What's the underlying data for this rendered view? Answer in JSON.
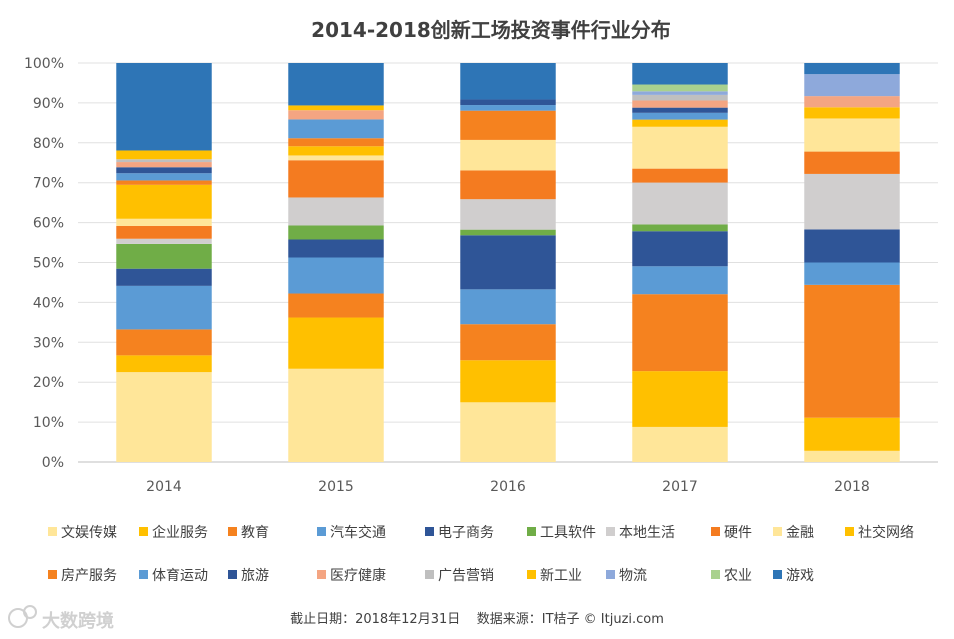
{
  "chart_data": {
    "type": "stacked-bar-100",
    "title": "2014-2018创新工场投资事件行业分布",
    "categories": [
      "2014",
      "2015",
      "2016",
      "2017",
      "2018"
    ],
    "ylim": [
      0,
      100
    ],
    "y_ticks": [
      "0%",
      "10%",
      "20%",
      "30%",
      "40%",
      "50%",
      "60%",
      "70%",
      "80%",
      "90%",
      "100%"
    ],
    "grid": true,
    "legend_position": "bottom",
    "series": [
      {
        "name": "文娱传媒",
        "color": "#FFE699",
        "values": [
          22.5,
          23.3,
          14.9,
          8.8,
          2.8
        ]
      },
      {
        "name": "企业服务",
        "color": "#FFC000",
        "values": [
          4.2,
          12.8,
          10.5,
          14.0,
          8.3
        ]
      },
      {
        "name": "教育",
        "color": "#F5821F",
        "values": [
          6.5,
          6.0,
          9.0,
          19.3,
          33.3
        ]
      },
      {
        "name": "汽车交通",
        "color": "#5B9BD5",
        "values": [
          10.9,
          9.0,
          8.7,
          7.0,
          5.6
        ]
      },
      {
        "name": "电子商务",
        "color": "#2F5597",
        "values": [
          4.3,
          4.5,
          13.5,
          8.8,
          8.3
        ]
      },
      {
        "name": "工具软件",
        "color": "#70AD47",
        "values": [
          6.2,
          3.5,
          1.4,
          1.7,
          0.0
        ]
      },
      {
        "name": "本地生活",
        "color": "#D0CECE",
        "values": [
          1.3,
          7.0,
          7.6,
          10.5,
          13.9
        ]
      },
      {
        "name": "硬件",
        "color": "#F47B20",
        "values": [
          3.2,
          9.3,
          7.2,
          3.5,
          5.6
        ]
      },
      {
        "name": "金融",
        "color": "#FFE699",
        "values": [
          1.8,
          1.2,
          7.6,
          10.5,
          8.3
        ]
      },
      {
        "name": "社交网络",
        "color": "#FFC000",
        "values": [
          8.5,
          2.3,
          0.0,
          1.8,
          2.8
        ]
      },
      {
        "name": "房产服务",
        "color": "#F5821F",
        "values": [
          1.1,
          2.0,
          7.3,
          0.0,
          0.0
        ]
      },
      {
        "name": "体育运动",
        "color": "#5B9BD5",
        "values": [
          1.8,
          4.7,
          1.4,
          1.7,
          0.0
        ]
      },
      {
        "name": "旅游",
        "color": "#2F5597",
        "values": [
          1.5,
          0.0,
          1.4,
          1.3,
          0.0
        ]
      },
      {
        "name": "医疗健康",
        "color": "#F4A582",
        "values": [
          1.3,
          2.3,
          0.0,
          1.8,
          2.8
        ]
      },
      {
        "name": "广告营销",
        "color": "#BFBFBF",
        "values": [
          0.7,
          0.0,
          0.0,
          1.4,
          0.0
        ]
      },
      {
        "name": "新工业",
        "color": "#FFC000",
        "values": [
          2.2,
          1.2,
          0.0,
          0.0,
          0.0
        ]
      },
      {
        "name": "物流",
        "color": "#8EA9DB",
        "values": [
          0.0,
          0.0,
          0.0,
          0.9,
          5.5
        ]
      },
      {
        "name": "农业",
        "color": "#A9D18E",
        "values": [
          0.0,
          0.0,
          0.0,
          1.7,
          0.0
        ]
      },
      {
        "name": "游戏",
        "color": "#2E75B6",
        "values": [
          21.9,
          10.6,
          9.1,
          5.4,
          2.8
        ]
      }
    ],
    "footer": "截止日期：2018年12月31日    数据来源：IT桔子 © Itjuzi.com",
    "watermark": "大数跨境"
  }
}
